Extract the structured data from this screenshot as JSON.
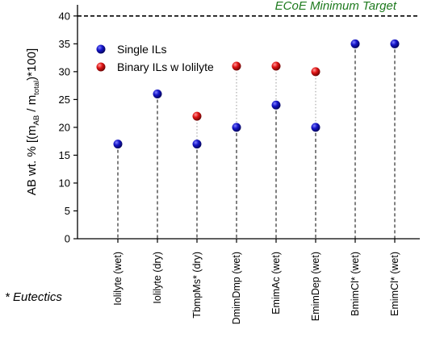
{
  "chart_data": {
    "type": "scatter",
    "categories": [
      "Iolilyte (wet)",
      "Iolilyte (dry)",
      "TbmpMs* (dry)",
      "DmimDmp (wet)",
      "EmimAc (wet)",
      "EmimDep (wet)",
      "BmimCl* (wet)",
      "EmimCl* (wet)"
    ],
    "series": [
      {
        "name": "Single ILs",
        "color": "#1414c8",
        "values": [
          17,
          26,
          17,
          20,
          24,
          20,
          35,
          35
        ]
      },
      {
        "name": "Binary ILs w Iolilyte",
        "color": "#e01414",
        "values": [
          null,
          null,
          22,
          31,
          31,
          30,
          null,
          null
        ]
      }
    ],
    "ylabel_prefix": "AB wt. %  [(m",
    "ylabel_sub1": "AB",
    "ylabel_mid": " / m",
    "ylabel_sub2": "total",
    "ylabel_suffix": ")*100]",
    "ylim": [
      0,
      42
    ],
    "yticks": [
      0,
      5,
      10,
      15,
      20,
      25,
      30,
      35,
      40
    ],
    "target": {
      "value": 40,
      "label": "ECoE Minimum Target",
      "color": "#1e7a1e"
    },
    "footnote": "* Eutectics",
    "legend_position": "top-left",
    "grid": false
  }
}
